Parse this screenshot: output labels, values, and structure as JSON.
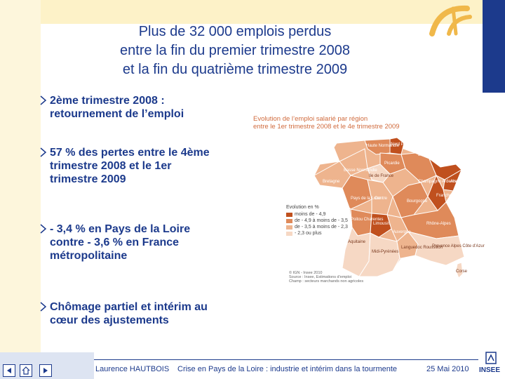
{
  "slide": {
    "title_lines": [
      "Plus de 32 000 emplois perdus",
      "entre la fin du premier trimestre 2008",
      "et la fin du quatrième trimestre 2009"
    ],
    "bullets": [
      {
        "lines": [
          "2ème trimestre 2008 :",
          "retournement de l’emploi"
        ]
      },
      {
        "lines": [
          "57 % des pertes entre le 4ème",
          "trimestre 2008 et le 1er",
          "trimestre 2009"
        ]
      },
      {
        "lines": [
          "- 3,4 % en Pays de la Loire",
          "contre - 3,6 % en France",
          "métropolitaine"
        ]
      },
      {
        "lines": [
          "Chômage partiel et intérim au",
          "cœur des ajustements"
        ]
      }
    ]
  },
  "map": {
    "title_line1": "Evolution de l’emploi salarié par région",
    "title_line2": "entre le 1er trimestre 2008 et le 4e trimestre 2009",
    "legend_title": "Evolution en %",
    "legend": [
      {
        "label": "moins de - 4,9",
        "color": "#c0501e"
      },
      {
        "label": "de - 4,9 à moins de - 3,5",
        "color": "#df8a5a"
      },
      {
        "label": "de - 3,5 à moins de - 2,3",
        "color": "#eeb48e"
      },
      {
        "label": "- 2,3 ou plus",
        "color": "#f6d8c4"
      }
    ],
    "regions": [
      {
        "label": "Nord Pas-de-Calais"
      },
      {
        "label": "Haute Normandie"
      },
      {
        "label": "Picardie"
      },
      {
        "label": "Basse Normandie"
      },
      {
        "label": "Ile de France"
      },
      {
        "label": "Lorraine"
      },
      {
        "label": "Alsace"
      },
      {
        "label": "Bretagne"
      },
      {
        "label": "Pays de la Loire"
      },
      {
        "label": "Centre"
      },
      {
        "label": "Champagne Ardenne"
      },
      {
        "label": "Bourgogne"
      },
      {
        "label": "Franche Comté"
      },
      {
        "label": "Poitou Charentes"
      },
      {
        "label": "Limousin"
      },
      {
        "label": "Auvergne"
      },
      {
        "label": "Rhône-Alpes"
      },
      {
        "label": "Aquitaine"
      },
      {
        "label": "Midi-Pyrénées"
      },
      {
        "label": "Languedoc Roussillon"
      },
      {
        "label": "Provence Alpes Côte d’Azur"
      },
      {
        "label": "Corse"
      }
    ],
    "source_lines": [
      "© IGN - Insee 2010",
      "Source : Insee, Estimations d’emploi",
      "Champ : secteurs marchands non agricoles"
    ]
  },
  "footer": {
    "author": "Laurence HAUTBOIS",
    "subject": "Crise en Pays de la Loire : industrie et intérim dans la tourmente",
    "date": "25 Mai 2010",
    "logo_text": "INSEE"
  }
}
